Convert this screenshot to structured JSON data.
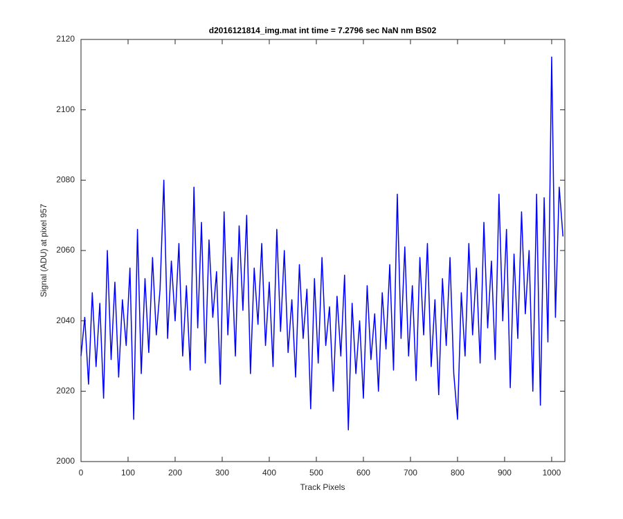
{
  "chart_data": {
    "type": "line",
    "title": "d2016121814_img.mat int time = 7.2796 sec  NaN nm BS02",
    "xlabel": "Track Pixels",
    "ylabel": "Signal (ADU) at pixel 957",
    "color": "#0000ff",
    "xlim": [
      0,
      1028
    ],
    "ylim": [
      2000,
      2120
    ],
    "xticks": [
      0,
      100,
      200,
      300,
      400,
      500,
      600,
      700,
      800,
      900,
      1000
    ],
    "yticks": [
      2000,
      2020,
      2040,
      2060,
      2080,
      2100,
      2120
    ],
    "grid": false,
    "x": [
      0,
      8,
      16,
      24,
      32,
      40,
      48,
      56,
      64,
      72,
      80,
      88,
      96,
      104,
      112,
      120,
      128,
      136,
      144,
      152,
      160,
      168,
      176,
      184,
      192,
      200,
      208,
      216,
      224,
      232,
      240,
      248,
      256,
      264,
      272,
      280,
      288,
      296,
      304,
      312,
      320,
      328,
      336,
      344,
      352,
      360,
      368,
      376,
      384,
      392,
      400,
      408,
      416,
      424,
      432,
      440,
      448,
      456,
      464,
      472,
      480,
      488,
      496,
      504,
      512,
      520,
      528,
      536,
      544,
      552,
      560,
      568,
      576,
      584,
      592,
      600,
      608,
      616,
      624,
      632,
      640,
      648,
      656,
      664,
      672,
      680,
      688,
      696,
      704,
      712,
      720,
      728,
      736,
      744,
      752,
      760,
      768,
      776,
      784,
      792,
      800,
      808,
      816,
      824,
      832,
      840,
      848,
      856,
      864,
      872,
      880,
      888,
      896,
      904,
      912,
      920,
      928,
      936,
      944,
      952,
      960,
      968,
      976,
      984,
      992,
      1000,
      1008,
      1016,
      1024
    ],
    "values": [
      2030,
      2041,
      2022,
      2048,
      2027,
      2045,
      2018,
      2060,
      2029,
      2051,
      2024,
      2046,
      2033,
      2055,
      2012,
      2066,
      2025,
      2052,
      2031,
      2058,
      2036,
      2049,
      2080,
      2035,
      2057,
      2040,
      2062,
      2030,
      2050,
      2026,
      2078,
      2038,
      2068,
      2028,
      2063,
      2041,
      2054,
      2022,
      2071,
      2036,
      2058,
      2030,
      2067,
      2043,
      2070,
      2025,
      2055,
      2039,
      2062,
      2033,
      2051,
      2027,
      2066,
      2037,
      2060,
      2031,
      2046,
      2024,
      2056,
      2035,
      2049,
      2015,
      2052,
      2028,
      2058,
      2033,
      2044,
      2020,
      2047,
      2030,
      2053,
      2009,
      2045,
      2025,
      2040,
      2018,
      2050,
      2029,
      2042,
      2020,
      2048,
      2032,
      2056,
      2026,
      2076,
      2035,
      2061,
      2030,
      2050,
      2023,
      2058,
      2036,
      2062,
      2027,
      2046,
      2019,
      2052,
      2033,
      2058,
      2025,
      2012,
      2048,
      2030,
      2062,
      2036,
      2055,
      2028,
      2068,
      2038,
      2057,
      2029,
      2076,
      2040,
      2066,
      2021,
      2059,
      2035,
      2071,
      2042,
      2060,
      2020,
      2076,
      2016,
      2075,
      2034,
      2115,
      2041,
      2078,
      2064
    ]
  }
}
